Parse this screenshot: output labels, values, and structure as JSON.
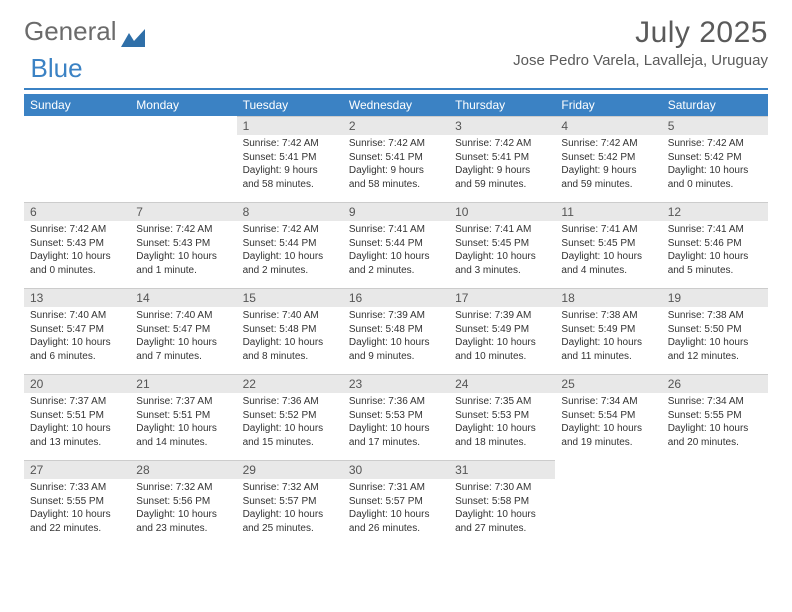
{
  "logo": {
    "text1": "General",
    "text2": "Blue"
  },
  "title": "July 2025",
  "location": "Jose Pedro Varela, Lavalleja, Uruguay",
  "colors": {
    "accent": "#3b82c4",
    "header_bg": "#3b82c4",
    "header_text": "#ffffff",
    "daynum_bg": "#e8e8e8",
    "text": "#333333",
    "title_text": "#5a5a5a"
  },
  "weekdays": [
    "Sunday",
    "Monday",
    "Tuesday",
    "Wednesday",
    "Thursday",
    "Friday",
    "Saturday"
  ],
  "weeks": [
    [
      null,
      null,
      {
        "n": "1",
        "sr": "7:42 AM",
        "ss": "5:41 PM",
        "dl": "9 hours and 58 minutes."
      },
      {
        "n": "2",
        "sr": "7:42 AM",
        "ss": "5:41 PM",
        "dl": "9 hours and 58 minutes."
      },
      {
        "n": "3",
        "sr": "7:42 AM",
        "ss": "5:41 PM",
        "dl": "9 hours and 59 minutes."
      },
      {
        "n": "4",
        "sr": "7:42 AM",
        "ss": "5:42 PM",
        "dl": "9 hours and 59 minutes."
      },
      {
        "n": "5",
        "sr": "7:42 AM",
        "ss": "5:42 PM",
        "dl": "10 hours and 0 minutes."
      }
    ],
    [
      {
        "n": "6",
        "sr": "7:42 AM",
        "ss": "5:43 PM",
        "dl": "10 hours and 0 minutes."
      },
      {
        "n": "7",
        "sr": "7:42 AM",
        "ss": "5:43 PM",
        "dl": "10 hours and 1 minute."
      },
      {
        "n": "8",
        "sr": "7:42 AM",
        "ss": "5:44 PM",
        "dl": "10 hours and 2 minutes."
      },
      {
        "n": "9",
        "sr": "7:41 AM",
        "ss": "5:44 PM",
        "dl": "10 hours and 2 minutes."
      },
      {
        "n": "10",
        "sr": "7:41 AM",
        "ss": "5:45 PM",
        "dl": "10 hours and 3 minutes."
      },
      {
        "n": "11",
        "sr": "7:41 AM",
        "ss": "5:45 PM",
        "dl": "10 hours and 4 minutes."
      },
      {
        "n": "12",
        "sr": "7:41 AM",
        "ss": "5:46 PM",
        "dl": "10 hours and 5 minutes."
      }
    ],
    [
      {
        "n": "13",
        "sr": "7:40 AM",
        "ss": "5:47 PM",
        "dl": "10 hours and 6 minutes."
      },
      {
        "n": "14",
        "sr": "7:40 AM",
        "ss": "5:47 PM",
        "dl": "10 hours and 7 minutes."
      },
      {
        "n": "15",
        "sr": "7:40 AM",
        "ss": "5:48 PM",
        "dl": "10 hours and 8 minutes."
      },
      {
        "n": "16",
        "sr": "7:39 AM",
        "ss": "5:48 PM",
        "dl": "10 hours and 9 minutes."
      },
      {
        "n": "17",
        "sr": "7:39 AM",
        "ss": "5:49 PM",
        "dl": "10 hours and 10 minutes."
      },
      {
        "n": "18",
        "sr": "7:38 AM",
        "ss": "5:49 PM",
        "dl": "10 hours and 11 minutes."
      },
      {
        "n": "19",
        "sr": "7:38 AM",
        "ss": "5:50 PM",
        "dl": "10 hours and 12 minutes."
      }
    ],
    [
      {
        "n": "20",
        "sr": "7:37 AM",
        "ss": "5:51 PM",
        "dl": "10 hours and 13 minutes."
      },
      {
        "n": "21",
        "sr": "7:37 AM",
        "ss": "5:51 PM",
        "dl": "10 hours and 14 minutes."
      },
      {
        "n": "22",
        "sr": "7:36 AM",
        "ss": "5:52 PM",
        "dl": "10 hours and 15 minutes."
      },
      {
        "n": "23",
        "sr": "7:36 AM",
        "ss": "5:53 PM",
        "dl": "10 hours and 17 minutes."
      },
      {
        "n": "24",
        "sr": "7:35 AM",
        "ss": "5:53 PM",
        "dl": "10 hours and 18 minutes."
      },
      {
        "n": "25",
        "sr": "7:34 AM",
        "ss": "5:54 PM",
        "dl": "10 hours and 19 minutes."
      },
      {
        "n": "26",
        "sr": "7:34 AM",
        "ss": "5:55 PM",
        "dl": "10 hours and 20 minutes."
      }
    ],
    [
      {
        "n": "27",
        "sr": "7:33 AM",
        "ss": "5:55 PM",
        "dl": "10 hours and 22 minutes."
      },
      {
        "n": "28",
        "sr": "7:32 AM",
        "ss": "5:56 PM",
        "dl": "10 hours and 23 minutes."
      },
      {
        "n": "29",
        "sr": "7:32 AM",
        "ss": "5:57 PM",
        "dl": "10 hours and 25 minutes."
      },
      {
        "n": "30",
        "sr": "7:31 AM",
        "ss": "5:57 PM",
        "dl": "10 hours and 26 minutes."
      },
      {
        "n": "31",
        "sr": "7:30 AM",
        "ss": "5:58 PM",
        "dl": "10 hours and 27 minutes."
      },
      null,
      null
    ]
  ],
  "labels": {
    "sunrise": "Sunrise:",
    "sunset": "Sunset:",
    "daylight": "Daylight:"
  }
}
